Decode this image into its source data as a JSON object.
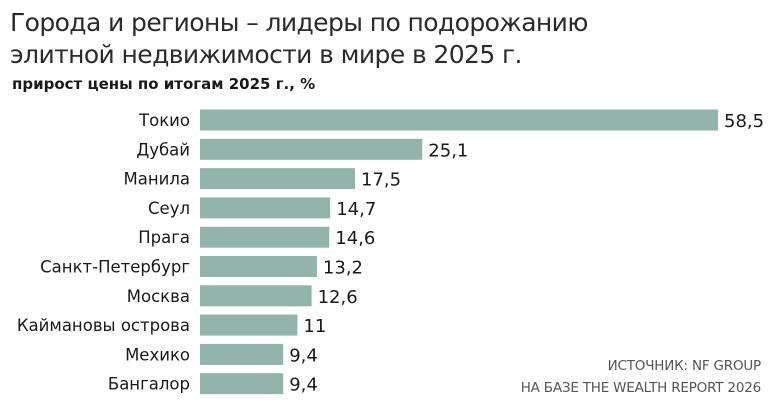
{
  "title_lines": [
    "Города и регионы – лидеры по подорожанию",
    "элитной недвижимости в мире в 2025 г."
  ],
  "subtitle": "прирост цены по итогам 2025 г., %",
  "source_lines": [
    "ИСТОЧНИК: NF GROUP",
    "НА БАЗЕ THE WEALTH REPORT 2026"
  ],
  "colors": {
    "bar": "#93b4aa",
    "text": "#1a1a1a"
  },
  "chart_data": {
    "type": "bar",
    "orientation": "horizontal",
    "title": "Города и регионы – лидеры по подорожанию элитной недвижимости в мире в 2025 г.",
    "subtitle": "прирост цены по итогам 2025 г., %",
    "categories": [
      "Токио",
      "Дубай",
      "Манила",
      "Сеул",
      "Прага",
      "Санкт-Петербург",
      "Москва",
      "Каймановы острова",
      "Мехико",
      "Бангалор"
    ],
    "values": [
      58.5,
      25.1,
      17.5,
      14.7,
      14.6,
      13.2,
      12.6,
      11,
      9.4,
      9.4
    ],
    "value_labels": [
      "58,5",
      "25,1",
      "17,5",
      "14,7",
      "14,6",
      "13,2",
      "12,6",
      "11",
      "9,4",
      "9,4"
    ],
    "xlim": [
      0,
      58.5
    ],
    "grid": false,
    "legend": "none"
  }
}
